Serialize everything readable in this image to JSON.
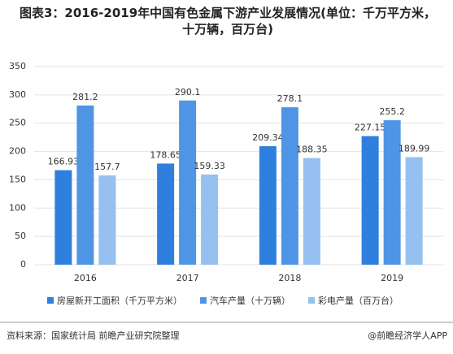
{
  "chart_data": {
    "type": "bar",
    "title": "图表3：2016-2019年中国有色金属下游产业发展情况(单位：千万平方米，十万辆，百万台)",
    "categories": [
      "2016",
      "2017",
      "2018",
      "2019"
    ],
    "series": [
      {
        "name": "房屋新开工面积（千万平方米）",
        "color": "#2f7fdf",
        "values": [
          166.93,
          178.65,
          209.34,
          227.15
        ]
      },
      {
        "name": "汽车产量（十万辆）",
        "color": "#4f95e6",
        "values": [
          281.2,
          290.1,
          278.1,
          255.2
        ]
      },
      {
        "name": "彩电产量（百万台）",
        "color": "#95c0ef",
        "values": [
          157.7,
          159.33,
          188.35,
          189.99
        ]
      }
    ],
    "ylim": [
      0,
      350
    ],
    "yticks": [
      0,
      50,
      100,
      150,
      200,
      250,
      300,
      350
    ],
    "grid": true,
    "source": "资料来源：国家统计局 前瞻产业研究院整理",
    "credit": "@前瞻经济学人APP"
  }
}
